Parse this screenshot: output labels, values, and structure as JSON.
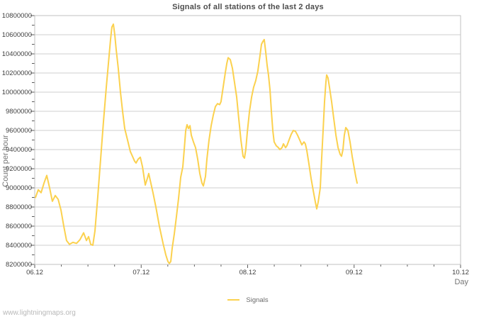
{
  "page": {
    "watermark": "www.lightningmaps.org"
  },
  "chart_data": {
    "type": "line",
    "title": "Signals of all stations of the last 2 days",
    "xlabel": "Day",
    "ylabel": "Count per hour",
    "xlim": [
      0,
      4
    ],
    "ylim": [
      8200000,
      10800000
    ],
    "x_tick_labels": [
      "06.12",
      "07.12",
      "08.12",
      "09.12",
      "10.12"
    ],
    "x_tick_values": [
      0,
      1,
      2,
      3,
      4
    ],
    "x_minor_step": 0.25,
    "y_tick_step": 200000,
    "y_minor_step": 100000,
    "grid": "horizontal-only",
    "legend": {
      "position": "bottom-center",
      "entries": [
        {
          "label": "Signals",
          "color": "#fbd14e"
        }
      ]
    },
    "colors": {
      "line": "#fbd14e",
      "grid": "#cfcfcf",
      "frame": "#c0c0c0",
      "tick": "#5a5a5a",
      "tick_text": "#3f3f3f",
      "title_text": "#4d4d4d",
      "axis_title_text": "#757575",
      "legend_text": "#6b6b6b",
      "watermark_text": "#b8b8b8"
    },
    "series": [
      {
        "name": "Signals",
        "points": [
          [
            0.007,
            8900000
          ],
          [
            0.033,
            8980000
          ],
          [
            0.06,
            8950000
          ],
          [
            0.087,
            9050000
          ],
          [
            0.113,
            9130000
          ],
          [
            0.14,
            9000000
          ],
          [
            0.166,
            8860000
          ],
          [
            0.193,
            8920000
          ],
          [
            0.22,
            8880000
          ],
          [
            0.246,
            8770000
          ],
          [
            0.273,
            8600000
          ],
          [
            0.299,
            8450000
          ],
          [
            0.326,
            8410000
          ],
          [
            0.359,
            8430000
          ],
          [
            0.393,
            8420000
          ],
          [
            0.426,
            8460000
          ],
          [
            0.459,
            8530000
          ],
          [
            0.486,
            8450000
          ],
          [
            0.506,
            8490000
          ],
          [
            0.526,
            8410000
          ],
          [
            0.546,
            8400000
          ],
          [
            0.566,
            8550000
          ],
          [
            0.592,
            8900000
          ],
          [
            0.619,
            9300000
          ],
          [
            0.646,
            9700000
          ],
          [
            0.672,
            10050000
          ],
          [
            0.692,
            10300000
          ],
          [
            0.712,
            10550000
          ],
          [
            0.725,
            10680000
          ],
          [
            0.739,
            10710000
          ],
          [
            0.752,
            10600000
          ],
          [
            0.765,
            10450000
          ],
          [
            0.785,
            10250000
          ],
          [
            0.805,
            10000000
          ],
          [
            0.825,
            9800000
          ],
          [
            0.845,
            9620000
          ],
          [
            0.872,
            9500000
          ],
          [
            0.898,
            9380000
          ],
          [
            0.918,
            9330000
          ],
          [
            0.938,
            9280000
          ],
          [
            0.952,
            9260000
          ],
          [
            0.972,
            9300000
          ],
          [
            0.992,
            9320000
          ],
          [
            1.012,
            9220000
          ],
          [
            1.038,
            9030000
          ],
          [
            1.058,
            9100000
          ],
          [
            1.071,
            9150000
          ],
          [
            1.091,
            9050000
          ],
          [
            1.111,
            8950000
          ],
          [
            1.138,
            8800000
          ],
          [
            1.171,
            8600000
          ],
          [
            1.205,
            8420000
          ],
          [
            1.231,
            8300000
          ],
          [
            1.251,
            8230000
          ],
          [
            1.264,
            8210000
          ],
          [
            1.278,
            8230000
          ],
          [
            1.291,
            8370000
          ],
          [
            1.311,
            8520000
          ],
          [
            1.331,
            8700000
          ],
          [
            1.351,
            8890000
          ],
          [
            1.371,
            9110000
          ],
          [
            1.391,
            9220000
          ],
          [
            1.404,
            9400000
          ],
          [
            1.418,
            9600000
          ],
          [
            1.431,
            9660000
          ],
          [
            1.444,
            9620000
          ],
          [
            1.458,
            9650000
          ],
          [
            1.471,
            9550000
          ],
          [
            1.491,
            9480000
          ],
          [
            1.511,
            9420000
          ],
          [
            1.531,
            9300000
          ],
          [
            1.551,
            9150000
          ],
          [
            1.571,
            9050000
          ],
          [
            1.584,
            9020000
          ],
          [
            1.604,
            9120000
          ],
          [
            1.617,
            9300000
          ],
          [
            1.637,
            9500000
          ],
          [
            1.657,
            9650000
          ],
          [
            1.677,
            9760000
          ],
          [
            1.697,
            9850000
          ],
          [
            1.717,
            9880000
          ],
          [
            1.737,
            9870000
          ],
          [
            1.75,
            9900000
          ],
          [
            1.77,
            10050000
          ],
          [
            1.79,
            10200000
          ],
          [
            1.804,
            10300000
          ],
          [
            1.817,
            10360000
          ],
          [
            1.837,
            10340000
          ],
          [
            1.857,
            10250000
          ],
          [
            1.877,
            10100000
          ],
          [
            1.897,
            9950000
          ],
          [
            1.917,
            9720000
          ],
          [
            1.937,
            9500000
          ],
          [
            1.957,
            9330000
          ],
          [
            1.97,
            9310000
          ],
          [
            1.983,
            9400000
          ],
          [
            1.997,
            9580000
          ],
          [
            2.017,
            9800000
          ],
          [
            2.037,
            9950000
          ],
          [
            2.056,
            10050000
          ],
          [
            2.076,
            10120000
          ],
          [
            2.096,
            10220000
          ],
          [
            2.116,
            10380000
          ],
          [
            2.13,
            10500000
          ],
          [
            2.143,
            10530000
          ],
          [
            2.156,
            10550000
          ],
          [
            2.17,
            10420000
          ],
          [
            2.183,
            10280000
          ],
          [
            2.196,
            10180000
          ],
          [
            2.21,
            10020000
          ],
          [
            2.223,
            9800000
          ],
          [
            2.236,
            9600000
          ],
          [
            2.249,
            9480000
          ],
          [
            2.269,
            9440000
          ],
          [
            2.289,
            9420000
          ],
          [
            2.303,
            9400000
          ],
          [
            2.323,
            9420000
          ],
          [
            2.336,
            9460000
          ],
          [
            2.356,
            9420000
          ],
          [
            2.369,
            9440000
          ],
          [
            2.389,
            9500000
          ],
          [
            2.409,
            9560000
          ],
          [
            2.429,
            9600000
          ],
          [
            2.449,
            9590000
          ],
          [
            2.469,
            9550000
          ],
          [
            2.489,
            9500000
          ],
          [
            2.509,
            9450000
          ],
          [
            2.529,
            9480000
          ],
          [
            2.542,
            9460000
          ],
          [
            2.556,
            9390000
          ],
          [
            2.576,
            9250000
          ],
          [
            2.596,
            9100000
          ],
          [
            2.616,
            8970000
          ],
          [
            2.636,
            8850000
          ],
          [
            2.649,
            8780000
          ],
          [
            2.662,
            8850000
          ],
          [
            2.682,
            9000000
          ],
          [
            2.695,
            9300000
          ],
          [
            2.709,
            9600000
          ],
          [
            2.722,
            9900000
          ],
          [
            2.735,
            10100000
          ],
          [
            2.742,
            10180000
          ],
          [
            2.755,
            10150000
          ],
          [
            2.769,
            10050000
          ],
          [
            2.789,
            9900000
          ],
          [
            2.809,
            9720000
          ],
          [
            2.829,
            9550000
          ],
          [
            2.849,
            9420000
          ],
          [
            2.869,
            9350000
          ],
          [
            2.882,
            9330000
          ],
          [
            2.895,
            9400000
          ],
          [
            2.908,
            9550000
          ],
          [
            2.922,
            9630000
          ],
          [
            2.942,
            9600000
          ],
          [
            2.962,
            9480000
          ],
          [
            2.982,
            9330000
          ],
          [
            3.002,
            9200000
          ],
          [
            3.015,
            9120000
          ],
          [
            3.028,
            9050000
          ]
        ]
      }
    ]
  }
}
